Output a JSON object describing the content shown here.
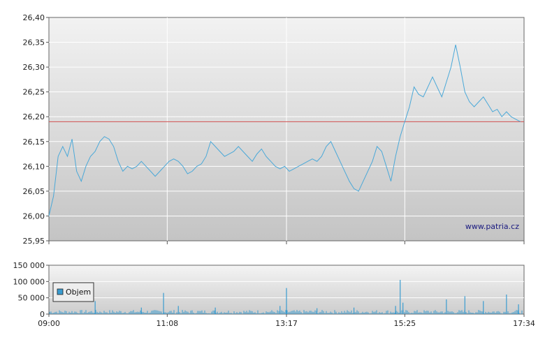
{
  "chart_data": [
    {
      "type": "line",
      "name": "price",
      "x_ticks": [
        "09:00",
        "11:08",
        "13:17",
        "15:25",
        "17:34"
      ],
      "y_ticks": [
        "25,95",
        "26,00",
        "26,05",
        "26,10",
        "26,15",
        "26,20",
        "26,25",
        "26,30",
        "26,35",
        "26,40"
      ],
      "ylim": [
        25.95,
        26.4
      ],
      "reference_line": 26.19,
      "grid": true,
      "watermark": "www.patria.cz",
      "colors": {
        "line": "#4aa8d8",
        "reference": "#d05050",
        "grid": "#ffffff"
      },
      "series": [
        {
          "points": [
            [
              "09:00",
              26.0
            ],
            [
              "09:05",
              26.04
            ],
            [
              "09:10",
              26.12
            ],
            [
              "09:15",
              26.14
            ],
            [
              "09:20",
              26.12
            ],
            [
              "09:25",
              26.155
            ],
            [
              "09:30",
              26.09
            ],
            [
              "09:35",
              26.07
            ],
            [
              "09:40",
              26.1
            ],
            [
              "09:45",
              26.12
            ],
            [
              "09:50",
              26.13
            ],
            [
              "09:55",
              26.15
            ],
            [
              "10:00",
              26.16
            ],
            [
              "10:05",
              26.155
            ],
            [
              "10:10",
              26.14
            ],
            [
              "10:15",
              26.11
            ],
            [
              "10:20",
              26.09
            ],
            [
              "10:25",
              26.1
            ],
            [
              "10:30",
              26.095
            ],
            [
              "10:35",
              26.1
            ],
            [
              "10:40",
              26.11
            ],
            [
              "10:45",
              26.1
            ],
            [
              "10:50",
              26.09
            ],
            [
              "10:55",
              26.08
            ],
            [
              "11:00",
              26.09
            ],
            [
              "11:05",
              26.1
            ],
            [
              "11:10",
              26.11
            ],
            [
              "11:15",
              26.115
            ],
            [
              "11:20",
              26.11
            ],
            [
              "11:25",
              26.1
            ],
            [
              "11:30",
              26.085
            ],
            [
              "11:35",
              26.09
            ],
            [
              "11:40",
              26.1
            ],
            [
              "11:45",
              26.105
            ],
            [
              "11:50",
              26.12
            ],
            [
              "11:55",
              26.15
            ],
            [
              "12:00",
              26.14
            ],
            [
              "12:05",
              26.13
            ],
            [
              "12:10",
              26.12
            ],
            [
              "12:15",
              26.125
            ],
            [
              "12:20",
              26.13
            ],
            [
              "12:25",
              26.14
            ],
            [
              "12:30",
              26.13
            ],
            [
              "12:35",
              26.12
            ],
            [
              "12:40",
              26.11
            ],
            [
              "12:45",
              26.125
            ],
            [
              "12:50",
              26.135
            ],
            [
              "12:55",
              26.12
            ],
            [
              "13:00",
              26.11
            ],
            [
              "13:05",
              26.1
            ],
            [
              "13:10",
              26.095
            ],
            [
              "13:15",
              26.1
            ],
            [
              "13:20",
              26.09
            ],
            [
              "13:25",
              26.095
            ],
            [
              "13:30",
              26.1
            ],
            [
              "13:35",
              26.105
            ],
            [
              "13:40",
              26.11
            ],
            [
              "13:45",
              26.115
            ],
            [
              "13:50",
              26.11
            ],
            [
              "13:55",
              26.12
            ],
            [
              "14:00",
              26.14
            ],
            [
              "14:05",
              26.15
            ],
            [
              "14:10",
              26.13
            ],
            [
              "14:15",
              26.11
            ],
            [
              "14:20",
              26.09
            ],
            [
              "14:25",
              26.07
            ],
            [
              "14:30",
              26.055
            ],
            [
              "14:35",
              26.05
            ],
            [
              "14:40",
              26.07
            ],
            [
              "14:45",
              26.09
            ],
            [
              "14:50",
              26.11
            ],
            [
              "14:55",
              26.14
            ],
            [
              "15:00",
              26.13
            ],
            [
              "15:05",
              26.1
            ],
            [
              "15:10",
              26.07
            ],
            [
              "15:15",
              26.12
            ],
            [
              "15:20",
              26.16
            ],
            [
              "15:25",
              26.19
            ],
            [
              "15:30",
              26.22
            ],
            [
              "15:35",
              26.26
            ],
            [
              "15:40",
              26.245
            ],
            [
              "15:45",
              26.24
            ],
            [
              "15:50",
              26.26
            ],
            [
              "15:55",
              26.28
            ],
            [
              "16:00",
              26.26
            ],
            [
              "16:05",
              26.24
            ],
            [
              "16:10",
              26.27
            ],
            [
              "16:15",
              26.3
            ],
            [
              "16:20",
              26.345
            ],
            [
              "16:25",
              26.3
            ],
            [
              "16:30",
              26.25
            ],
            [
              "16:35",
              26.23
            ],
            [
              "16:40",
              26.22
            ],
            [
              "16:45",
              26.23
            ],
            [
              "16:50",
              26.24
            ],
            [
              "16:55",
              26.225
            ],
            [
              "17:00",
              26.21
            ],
            [
              "17:05",
              26.215
            ],
            [
              "17:10",
              26.2
            ],
            [
              "17:15",
              26.21
            ],
            [
              "17:20",
              26.2
            ],
            [
              "17:25",
              26.195
            ],
            [
              "17:30",
              26.19
            ]
          ]
        }
      ]
    },
    {
      "type": "bar",
      "name": "volume",
      "x_ticks": [
        "09:00",
        "11:08",
        "13:17",
        "15:25",
        "17:34"
      ],
      "y_ticks": [
        "0",
        "50 000",
        "100 000",
        "150 000"
      ],
      "ylim": [
        0,
        150000
      ],
      "legend": "Objem",
      "legend_position": "top-left",
      "colors": {
        "bar": "#3a9cd0"
      },
      "spikes": [
        [
          "09:50",
          40000
        ],
        [
          "10:40",
          20000
        ],
        [
          "11:04",
          65000
        ],
        [
          "11:20",
          25000
        ],
        [
          "12:00",
          20000
        ],
        [
          "13:10",
          25000
        ],
        [
          "13:17",
          80000
        ],
        [
          "13:50",
          18000
        ],
        [
          "14:30",
          20000
        ],
        [
          "15:15",
          25000
        ],
        [
          "15:20",
          105000
        ],
        [
          "15:23",
          35000
        ],
        [
          "16:10",
          45000
        ],
        [
          "16:30",
          55000
        ],
        [
          "16:50",
          40000
        ],
        [
          "17:15",
          60000
        ],
        [
          "17:28",
          30000
        ]
      ],
      "baseline": 8000
    }
  ]
}
